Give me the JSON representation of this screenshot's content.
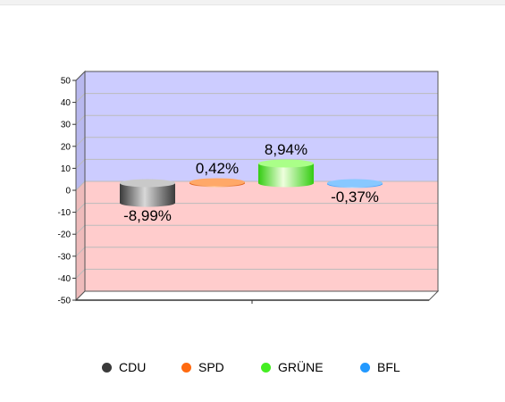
{
  "chart_data": {
    "type": "bar",
    "categories": [
      "CDU",
      "SPD",
      "GRÜNE",
      "BFL"
    ],
    "values": [
      -8.99,
      0.42,
      8.94,
      -0.37
    ],
    "data_labels": [
      "-8,99%",
      "0,42%",
      "8,94%",
      "-0,37%"
    ],
    "colors": [
      "#555555",
      "#ff6a10",
      "#44ee22",
      "#2299ff"
    ],
    "ylim": [
      -50,
      50
    ],
    "yticks": [
      50,
      40,
      30,
      20,
      10,
      0,
      -10,
      -20,
      -30,
      -40,
      -50
    ],
    "grid": true,
    "positive_background": "#ccccff",
    "negative_background": "#ffcccc",
    "legend_position": "bottom"
  }
}
